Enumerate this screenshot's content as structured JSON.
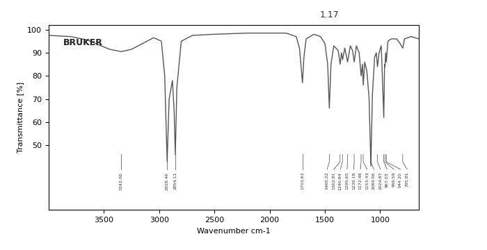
{
  "chart_data": {
    "type": "line",
    "x_label": "Wavenumber cm-1",
    "y_label": "Transmittance [%]",
    "x": [
      4000,
      3800,
      3650,
      3550,
      3450,
      3342,
      3250,
      3150,
      3050,
      2980,
      2950,
      2928,
      2910,
      2880,
      2865,
      2854,
      2840,
      2800,
      2700,
      2500,
      2200,
      2000,
      1850,
      1760,
      1730,
      1703,
      1690,
      1670,
      1600,
      1540,
      1500,
      1475,
      1460,
      1445,
      1420,
      1380,
      1362,
      1350,
      1340,
      1320,
      1295,
      1270,
      1250,
      1235,
      1215,
      1190,
      1172,
      1160,
      1153,
      1140,
      1120,
      1100,
      1084,
      1070,
      1050,
      1035,
      1024,
      1010,
      990,
      967,
      960,
      956,
      950,
      944,
      930,
      900,
      850,
      820,
      795,
      780,
      720,
      650
    ],
    "values": [
      97.5,
      97,
      95.5,
      93.5,
      91.5,
      90.5,
      91.5,
      94,
      96.5,
      95,
      80,
      43,
      70,
      78,
      65,
      46,
      75,
      95,
      97.5,
      98,
      98.5,
      98.5,
      98.5,
      97,
      92,
      77,
      88,
      96,
      98,
      97,
      94,
      85,
      66,
      85,
      93,
      91,
      85,
      90,
      87,
      92,
      86,
      93,
      91,
      86,
      93,
      90,
      80,
      85,
      76,
      86,
      82,
      70,
      41,
      72,
      88,
      90,
      84,
      90,
      93,
      62,
      85,
      84,
      90,
      86,
      95,
      96,
      96,
      94,
      92,
      96,
      97,
      96
    ],
    "xlim": [
      4000,
      650
    ],
    "ylim": [
      22,
      102
    ],
    "xticks": [
      3500,
      3000,
      2500,
      2000,
      1500,
      1000
    ],
    "yticks": [
      50,
      60,
      70,
      80,
      90,
      100
    ],
    "color": "#555555",
    "grid": false,
    "annotations": [
      {
        "x": 3342.06,
        "label": "3342.06"
      },
      {
        "x": 2928.46,
        "label": "2928.46"
      },
      {
        "x": 2854.11,
        "label": "2854.11"
      },
      {
        "x": 1703.63,
        "label": "1703.63"
      },
      {
        "x": 1460.22,
        "label": "1460.22"
      },
      {
        "x": 1362.81,
        "label": "1362.81"
      },
      {
        "x": 1340.94,
        "label": "1340.94"
      },
      {
        "x": 1295.65,
        "label": "1295.65"
      },
      {
        "x": 1235.18,
        "label": "1235.18"
      },
      {
        "x": 1172.48,
        "label": "1172.48"
      },
      {
        "x": 1153.43,
        "label": "1153.43"
      },
      {
        "x": 1084.06,
        "label": "1084.06"
      },
      {
        "x": 1024.87,
        "label": "1024.87"
      },
      {
        "x": 967.03,
        "label": "967.03"
      },
      {
        "x": 956.59,
        "label": "956.59"
      },
      {
        "x": 944.2,
        "label": "944.20"
      },
      {
        "x": 795.81,
        "label": "795.81"
      }
    ],
    "logo": "BRUKER",
    "note": "1.17"
  }
}
